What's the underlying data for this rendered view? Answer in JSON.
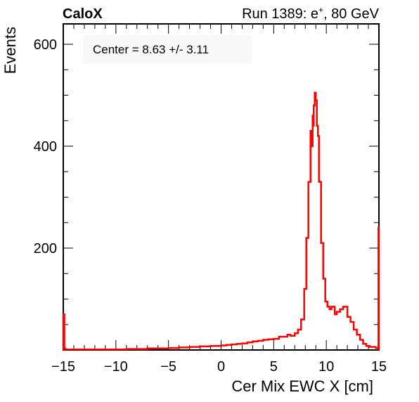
{
  "header": {
    "left_title": "CaloX",
    "run_label": "Run 1389: e",
    "run_sup": "+",
    "run_energy": ", 80 GeV"
  },
  "annotation": "Center = 8.63 +/- 3.11",
  "chart_data": {
    "type": "line",
    "xlabel": "Cer Mix EWC X [cm]",
    "ylabel": "Events",
    "xlim": [
      -15,
      15
    ],
    "ylim": [
      0,
      640
    ],
    "x_ticks": [
      -15,
      -10,
      -5,
      0,
      5,
      10,
      15
    ],
    "x_tick_labels": [
      "−15",
      "−10",
      "−5",
      "0",
      "5",
      "10",
      "15"
    ],
    "y_ticks": [
      200,
      400,
      600
    ],
    "y_tick_labels": [
      "200",
      "400",
      "600"
    ],
    "grid": false,
    "series": [
      {
        "color": "#ff0000",
        "x": [
          -15.0,
          -14.9,
          -14.8,
          -14.0,
          -13.0,
          -12.0,
          -11.0,
          -10.0,
          -9.0,
          -8.0,
          -7.0,
          -6.0,
          -5.0,
          -4.0,
          -3.0,
          -2.0,
          -1.0,
          0.0,
          0.5,
          1.0,
          1.5,
          2.0,
          2.5,
          3.0,
          3.5,
          4.0,
          4.5,
          5.0,
          5.5,
          6.0,
          6.3,
          6.6,
          7.0,
          7.3,
          7.6,
          7.9,
          8.1,
          8.3,
          8.5,
          8.6,
          8.7,
          8.75,
          8.8,
          8.9,
          9.0,
          9.1,
          9.2,
          9.3,
          9.5,
          9.7,
          9.9,
          10.1,
          10.3,
          10.5,
          10.8,
          11.0,
          11.3,
          11.6,
          12.0,
          12.3,
          12.6,
          12.9,
          13.2,
          13.5,
          13.8,
          14.1,
          14.4,
          14.7,
          14.9,
          14.95,
          15.0
        ],
        "y": [
          70,
          3,
          1,
          1,
          1,
          1,
          1,
          1,
          2,
          2,
          3,
          3,
          4,
          5,
          6,
          7,
          8,
          9,
          10,
          11,
          12,
          13,
          15,
          17,
          18,
          20,
          21,
          22,
          26,
          26,
          30,
          28,
          33,
          40,
          60,
          120,
          220,
          330,
          430,
          400,
          460,
          440,
          480,
          505,
          490,
          440,
          420,
          330,
          210,
          140,
          95,
          85,
          80,
          85,
          70,
          75,
          80,
          85,
          65,
          55,
          40,
          30,
          20,
          12,
          8,
          6,
          6,
          4,
          3,
          240,
          240
        ]
      }
    ]
  }
}
